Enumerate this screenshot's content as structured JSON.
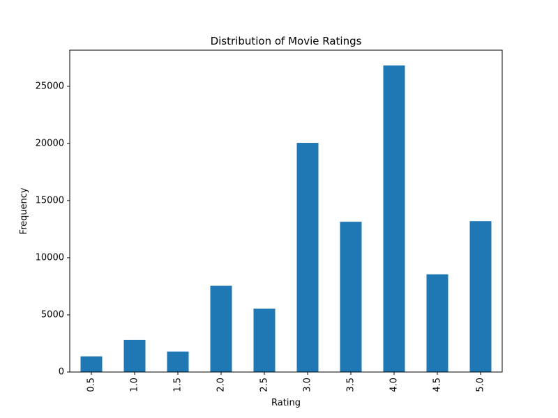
{
  "chart_data": {
    "type": "bar",
    "title": "Distribution of Movie Ratings",
    "xlabel": "Rating",
    "ylabel": "Frequency",
    "categories": [
      "0.5",
      "1.0",
      "1.5",
      "2.0",
      "2.5",
      "3.0",
      "3.5",
      "4.0",
      "4.5",
      "5.0"
    ],
    "values": [
      1370,
      2810,
      1790,
      7550,
      5550,
      20050,
      13140,
      26820,
      8550,
      13210
    ],
    "ylim": [
      0,
      28160
    ],
    "yticks": [
      0,
      5000,
      10000,
      15000,
      20000,
      25000
    ],
    "ytick_labels": [
      "0",
      "5000",
      "10000",
      "15000",
      "20000",
      "25000"
    ],
    "bar_color": "#1f77b4",
    "grid": false,
    "legend": "none",
    "xtick_rotation": "vertical"
  }
}
